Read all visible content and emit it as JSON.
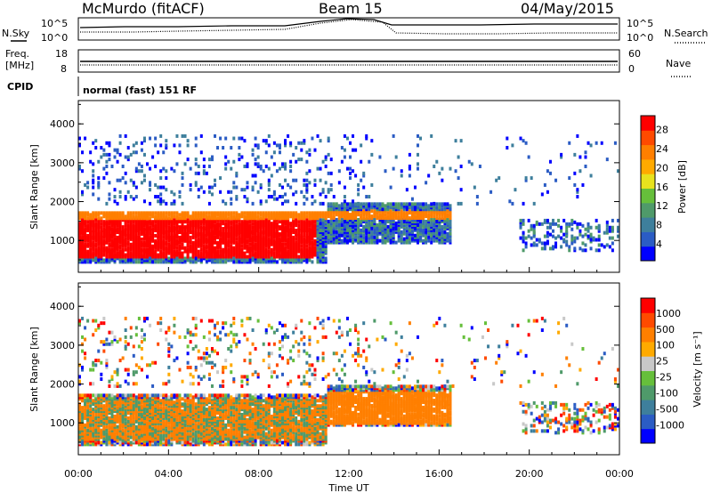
{
  "header": {
    "station": "McMurdo (fitACF)",
    "beam": "Beam 15",
    "date": "04/May/2015"
  },
  "status_panels": {
    "nsky_label": "N.Sky",
    "nsearch_label": "N.Search",
    "noise_ticks": [
      "10^5",
      "10^0"
    ],
    "freq_label_1": "Freq.",
    "freq_label_2": "[MHz]",
    "freq_ticks": [
      "18",
      "8"
    ],
    "nave_label": "Nave",
    "nave_ticks": [
      "60",
      "0"
    ],
    "cpid_label": "CPID",
    "cpid_text": "normal (fast) 151 RF"
  },
  "colors": {
    "power_scale": [
      "#0000ff",
      "#2b5cc4",
      "#3e7f9c",
      "#4f9a6a",
      "#66bf3b",
      "#e8e21e",
      "#ffaa00",
      "#ff7f00",
      "#ff4a00",
      "#ff0000"
    ],
    "velocity_scale": [
      "#0000ff",
      "#2b5cc4",
      "#3e7f9c",
      "#4f9a6a",
      "#66bf3b",
      "#c8c8c8",
      "#ffaa00",
      "#ff7f00",
      "#ff4a00",
      "#ff0000"
    ]
  },
  "chart_data": [
    {
      "type": "heatmap",
      "title": "",
      "xlabel": "Time UT",
      "ylabel": "Slant Range [km]",
      "xticks": [
        "00:00",
        "04:00",
        "08:00",
        "12:00",
        "16:00",
        "20:00",
        "00:00"
      ],
      "yticks": [
        "1000",
        "2000",
        "3000",
        "4000"
      ],
      "xlim": [
        0,
        24
      ],
      "ylim": [
        180,
        4600
      ],
      "colorbar_label": "Power [dB]",
      "colorbar_ticks": [
        "28",
        "24",
        "20",
        "16",
        "12",
        "8",
        "4"
      ],
      "colorbar_range": [
        0,
        30
      ]
    },
    {
      "type": "heatmap",
      "title": "",
      "xlabel": "Time UT",
      "ylabel": "Slant Range [km]",
      "xticks": [
        "00:00",
        "04:00",
        "08:00",
        "12:00",
        "16:00",
        "20:00",
        "00:00"
      ],
      "yticks": [
        "1000",
        "2000",
        "3000",
        "4000"
      ],
      "xlim": [
        0,
        24
      ],
      "ylim": [
        180,
        4600
      ],
      "colorbar_label": "Velocity [m s⁻¹]",
      "colorbar_ticks": [
        "1000",
        "500",
        "100",
        "25",
        "-25",
        "-100",
        "-500",
        "-1000"
      ],
      "colorbar_range": [
        -1000,
        1000
      ]
    }
  ]
}
